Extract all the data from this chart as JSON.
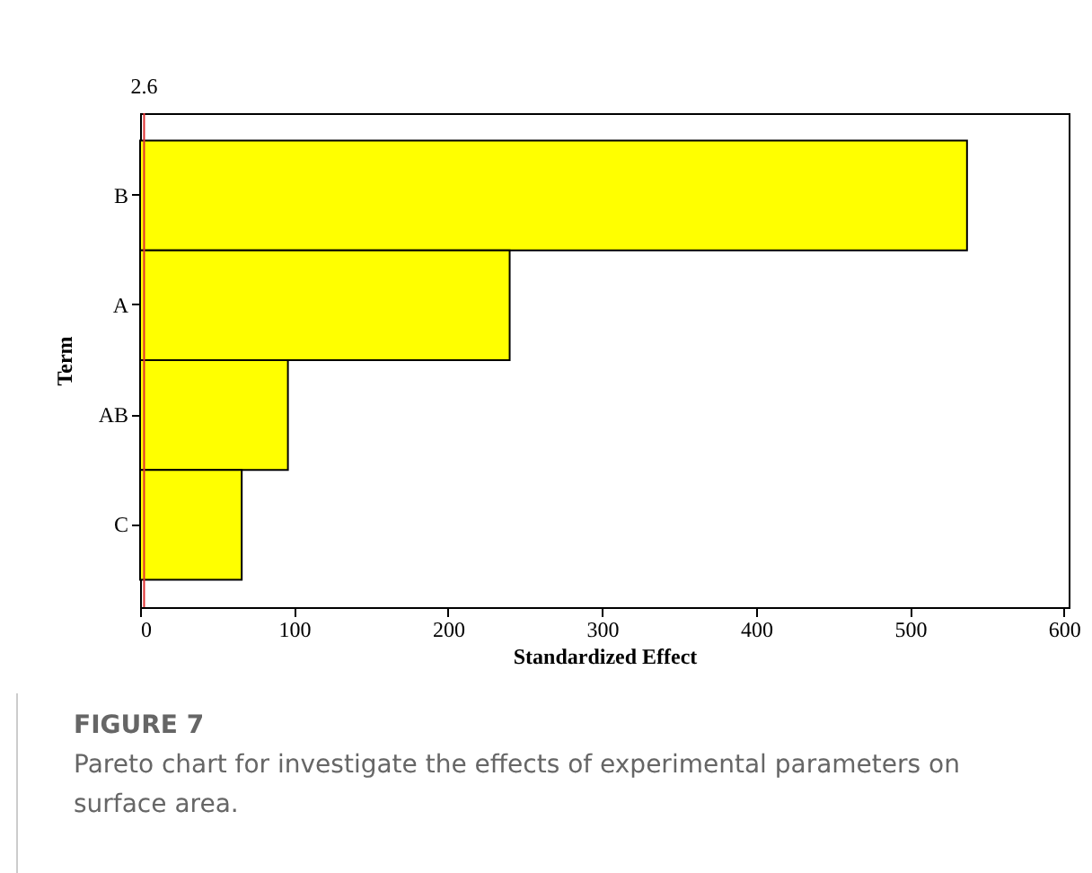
{
  "chart_data": {
    "type": "bar",
    "orientation": "horizontal",
    "categories": [
      "B",
      "A",
      "AB",
      "C"
    ],
    "values": [
      537,
      240,
      96,
      66
    ],
    "color": "#ffff00",
    "xlabel": "Standardized Effect",
    "ylabel": "Term",
    "xlim": [
      0,
      603
    ],
    "xticks": [
      0,
      100,
      200,
      300,
      400,
      500,
      600
    ],
    "ref_lines": [
      {
        "axis": "x",
        "value": 2.6,
        "label": "2.6",
        "color": "#e03030"
      }
    ],
    "grid": false,
    "annotations": [
      "FIGURE 7",
      "Pareto chart for investigate the effects of experimental parameters on surface area."
    ]
  }
}
